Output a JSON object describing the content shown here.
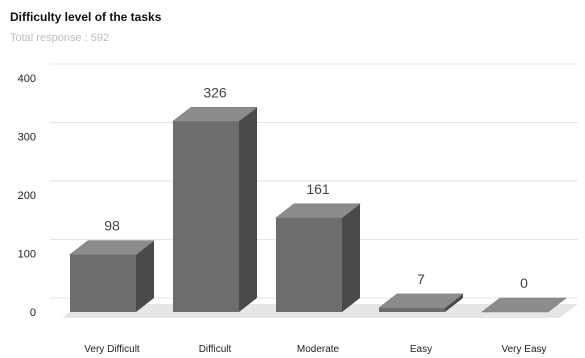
{
  "chart_data": {
    "type": "bar",
    "title": "Difficulty level of the tasks",
    "subtitle": "Total response : 592",
    "categories": [
      "Very Difficult",
      "Difficult",
      "Moderate",
      "Easy",
      "Very Easy"
    ],
    "values": [
      98,
      326,
      161,
      7,
      0
    ],
    "data_labels": [
      "98",
      "326",
      "161",
      "7",
      "0"
    ],
    "ylim": [
      0,
      400
    ],
    "yticks": [
      0,
      100,
      200,
      300,
      400
    ],
    "ytick_labels": [
      "0",
      "100",
      "200",
      "300",
      "400"
    ],
    "grid": true,
    "legend": "none",
    "colors": {
      "bar_front": "#6d6d6d",
      "bar_top": "#8c8c8c",
      "bar_side": "#4a4a4a",
      "floor": "#e6e6e6",
      "grid": "#e4e4e4"
    }
  }
}
